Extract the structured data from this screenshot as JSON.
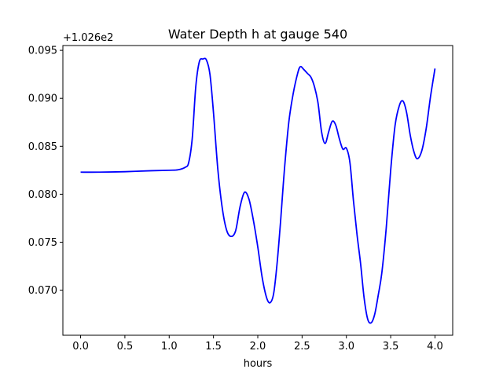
{
  "chart_data": {
    "type": "line",
    "title": "Water Depth h at gauge 540",
    "xlabel": "hours",
    "ylabel": "",
    "offset_label": "+1.026e2",
    "xlim": [
      -0.2,
      4.2
    ],
    "ylim": [
      0.0653,
      0.0955
    ],
    "x_ticks": [
      {
        "value": 0.0,
        "label": "0.0"
      },
      {
        "value": 0.5,
        "label": "0.5"
      },
      {
        "value": 1.0,
        "label": "1.0"
      },
      {
        "value": 1.5,
        "label": "1.5"
      },
      {
        "value": 2.0,
        "label": "2.0"
      },
      {
        "value": 2.5,
        "label": "2.5"
      },
      {
        "value": 3.0,
        "label": "3.0"
      },
      {
        "value": 3.5,
        "label": "3.5"
      },
      {
        "value": 4.0,
        "label": "4.0"
      }
    ],
    "y_ticks": [
      {
        "value": 0.07,
        "label": "0.070"
      },
      {
        "value": 0.075,
        "label": "0.075"
      },
      {
        "value": 0.08,
        "label": "0.080"
      },
      {
        "value": 0.085,
        "label": "0.085"
      },
      {
        "value": 0.09,
        "label": "0.090"
      },
      {
        "value": 0.095,
        "label": "0.095"
      }
    ],
    "grid": false,
    "series": [
      {
        "color": "#0000ff",
        "x": [
          0.0,
          0.2,
          0.5,
          0.8,
          1.0,
          1.1,
          1.18,
          1.22,
          1.26,
          1.3,
          1.34,
          1.38,
          1.42,
          1.46,
          1.5,
          1.55,
          1.6,
          1.65,
          1.7,
          1.75,
          1.8,
          1.85,
          1.9,
          1.95,
          2.0,
          2.05,
          2.1,
          2.14,
          2.18,
          2.22,
          2.26,
          2.3,
          2.35,
          2.4,
          2.45,
          2.48,
          2.52,
          2.56,
          2.6,
          2.64,
          2.68,
          2.72,
          2.76,
          2.8,
          2.84,
          2.88,
          2.92,
          2.96,
          3.0,
          3.04,
          3.08,
          3.12,
          3.16,
          3.2,
          3.24,
          3.28,
          3.32,
          3.36,
          3.4,
          3.45,
          3.5,
          3.55,
          3.6,
          3.64,
          3.68,
          3.72,
          3.76,
          3.8,
          3.85,
          3.9,
          3.95,
          4.0
        ],
        "y": [
          0.0823,
          0.0823,
          0.08235,
          0.08245,
          0.0825,
          0.08255,
          0.0828,
          0.0833,
          0.0858,
          0.0912,
          0.0938,
          0.0941,
          0.094,
          0.0925,
          0.0885,
          0.0825,
          0.0785,
          0.0762,
          0.0756,
          0.0762,
          0.0787,
          0.0802,
          0.0795,
          0.0773,
          0.0745,
          0.0713,
          0.0692,
          0.0687,
          0.0697,
          0.073,
          0.0775,
          0.0825,
          0.0875,
          0.0905,
          0.0926,
          0.0933,
          0.093,
          0.0926,
          0.0922,
          0.0912,
          0.0895,
          0.0865,
          0.0853,
          0.0865,
          0.0876,
          0.0872,
          0.0858,
          0.0847,
          0.0848,
          0.0833,
          0.0793,
          0.0758,
          0.0728,
          0.0692,
          0.067,
          0.0666,
          0.0675,
          0.0695,
          0.0718,
          0.0765,
          0.0825,
          0.0872,
          0.0893,
          0.0897,
          0.0885,
          0.0862,
          0.0845,
          0.0837,
          0.0845,
          0.0868,
          0.0902,
          0.0931
        ]
      }
    ]
  }
}
